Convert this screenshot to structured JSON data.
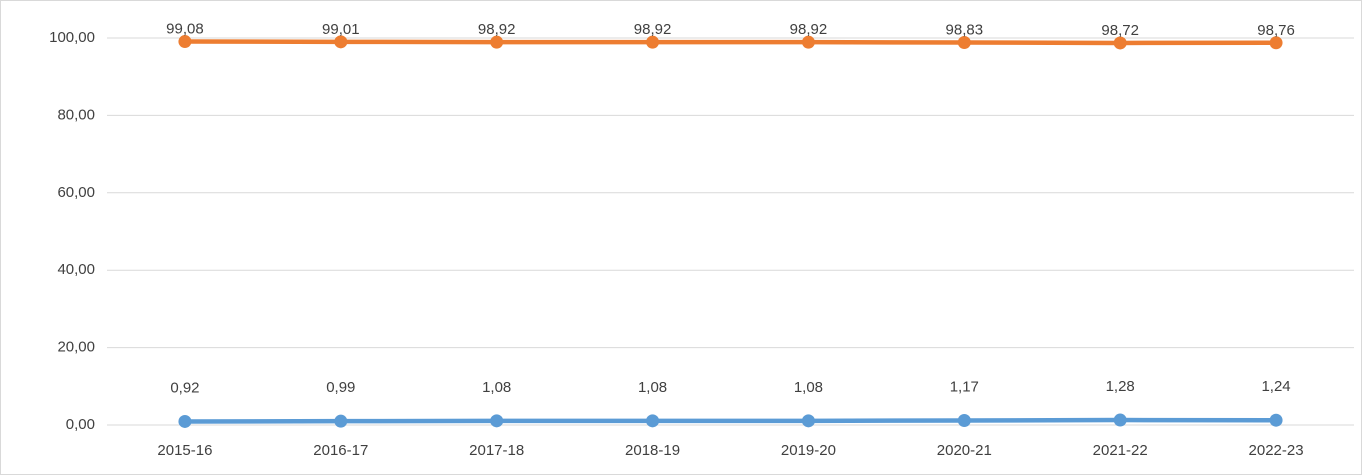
{
  "chart_data": {
    "type": "line",
    "categories": [
      "2015-16",
      "2016-17",
      "2017-18",
      "2018-19",
      "2019-20",
      "2020-21",
      "2021-22",
      "2022-23"
    ],
    "series": [
      {
        "color": "#5b9bd5",
        "values": [
          0.92,
          0.99,
          1.08,
          1.08,
          1.08,
          1.17,
          1.28,
          1.24
        ],
        "value_labels": [
          "0,92",
          "0,99",
          "1,08",
          "1,08",
          "1,08",
          "1,17",
          "1,28",
          "1,24"
        ]
      },
      {
        "color": "#ed7d31",
        "values": [
          99.08,
          99.01,
          98.92,
          98.92,
          98.92,
          98.83,
          98.72,
          98.76
        ],
        "value_labels": [
          "99,08",
          "99,01",
          "98,92",
          "98,92",
          "98,92",
          "98,83",
          "98,72",
          "98,76"
        ]
      }
    ],
    "ylim": [
      0,
      100
    ],
    "yticks": [
      {
        "value": 0,
        "label": "0,00"
      },
      {
        "value": 20,
        "label": "20,00"
      },
      {
        "value": 40,
        "label": "40,00"
      },
      {
        "value": 60,
        "label": "60,00"
      },
      {
        "value": 80,
        "label": "80,00"
      },
      {
        "value": 100,
        "label": "100,00"
      }
    ],
    "grid": true
  }
}
